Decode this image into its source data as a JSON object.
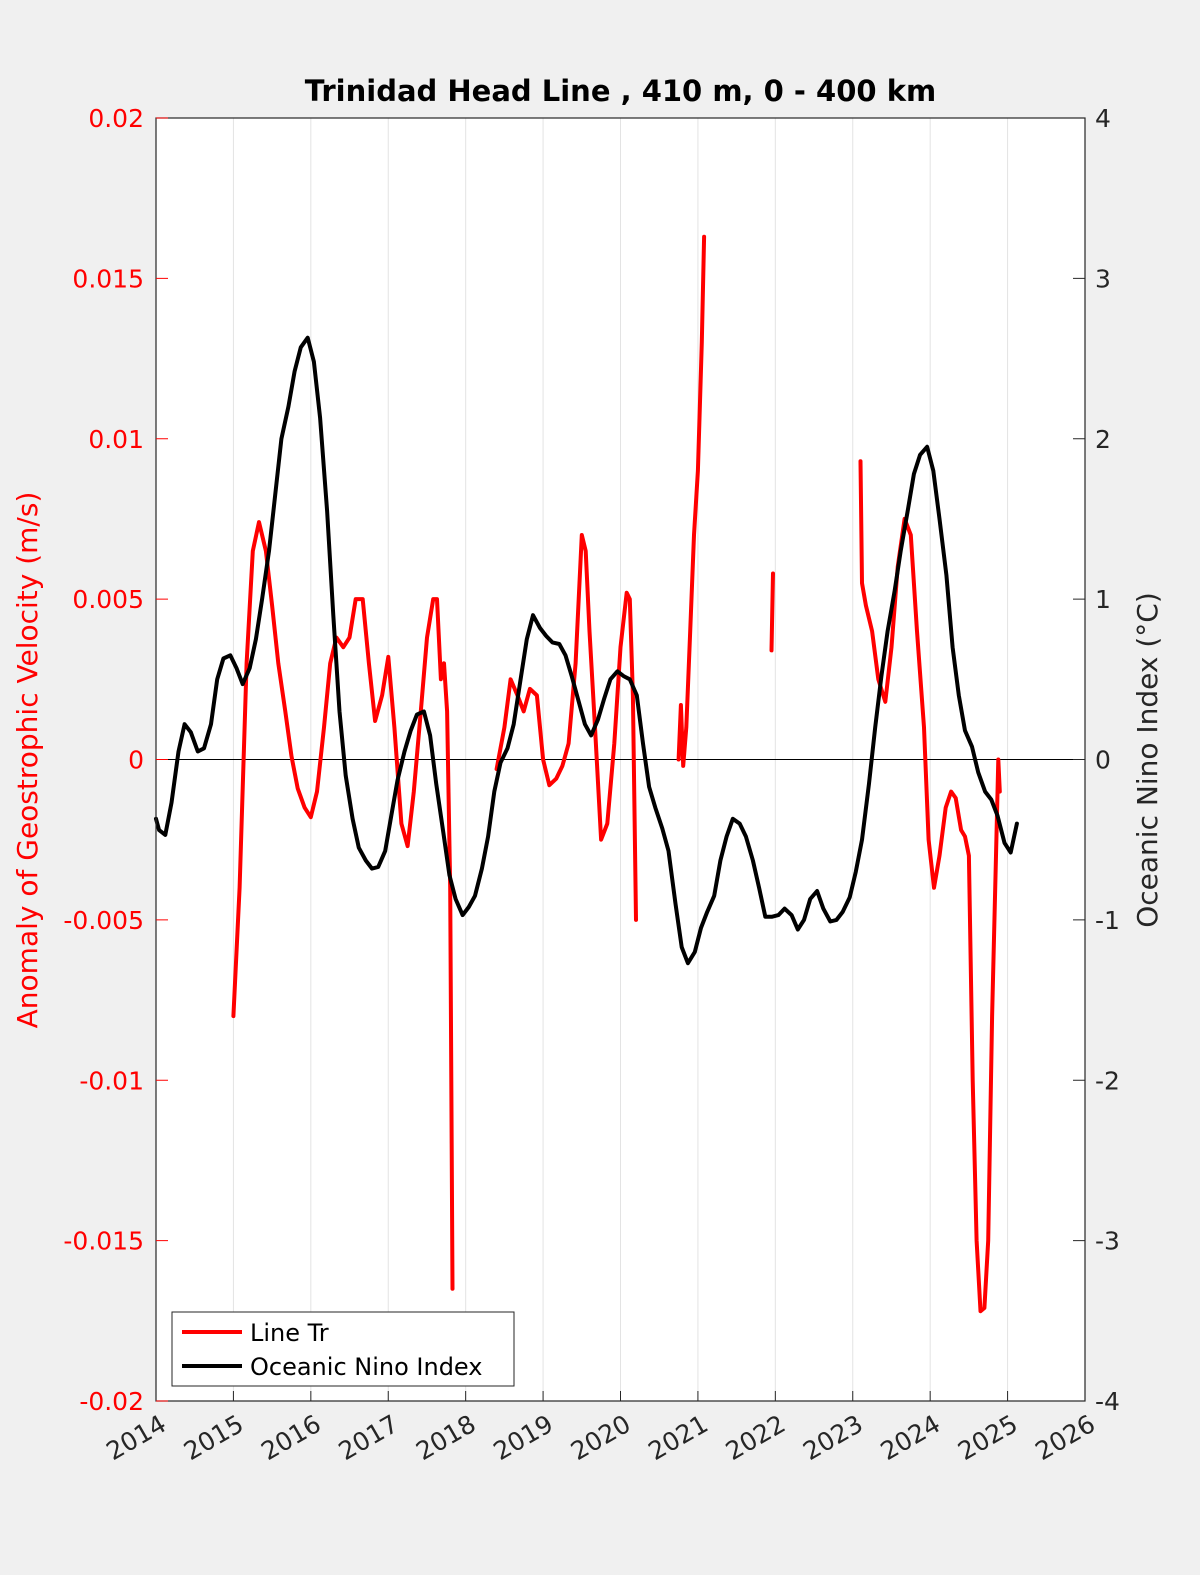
{
  "chart_data": {
    "type": "line",
    "title": "Trinidad Head Line , 410 m, 0 - 400 km",
    "xlim": [
      2014,
      2026
    ],
    "x_ticks": [
      "2014",
      "2015",
      "2016",
      "2017",
      "2018",
      "2019",
      "2020",
      "2021",
      "2022",
      "2023",
      "2024",
      "2025",
      "2026"
    ],
    "y_left": {
      "label": "Anomaly of Geostrophic Velocity (m/s)",
      "lim": [
        -0.02,
        0.02
      ],
      "ticks": [
        "0.02",
        "0.015",
        "0.01",
        "0.005",
        "0",
        "-0.005",
        "-0.01",
        "-0.015",
        "-0.02"
      ],
      "color": "#ff0000"
    },
    "y_right": {
      "label": "Oceanic Nino Index (°C)",
      "lim": [
        -4,
        4
      ],
      "ticks": [
        "4",
        "3",
        "2",
        "1",
        "0",
        "-1",
        "-2",
        "-3",
        "-4"
      ],
      "color": "#262626"
    },
    "grid": "vertical",
    "zero_line": 0,
    "legend": {
      "placement": "bottom-left"
    },
    "series": [
      {
        "name": "Line Tr",
        "axis": "left",
        "color": "#ff0000",
        "segments": [
          [
            [
              2015.0,
              -0.008
            ],
            [
              2015.08,
              -0.004
            ],
            [
              2015.17,
              0.003
            ],
            [
              2015.25,
              0.0065
            ],
            [
              2015.33,
              0.0074
            ],
            [
              2015.42,
              0.0065
            ],
            [
              2015.5,
              0.0048
            ],
            [
              2015.58,
              0.003
            ],
            [
              2015.67,
              0.0015
            ],
            [
              2015.75,
              0.0001
            ],
            [
              2015.83,
              -0.0009
            ],
            [
              2015.92,
              -0.0015
            ],
            [
              2016.0,
              -0.0018
            ],
            [
              2016.08,
              -0.001
            ],
            [
              2016.17,
              0.001
            ],
            [
              2016.25,
              0.003
            ],
            [
              2016.33,
              0.0038
            ],
            [
              2016.42,
              0.0035
            ],
            [
              2016.5,
              0.0038
            ],
            [
              2016.58,
              0.005
            ],
            [
              2016.67,
              0.005
            ],
            [
              2016.75,
              0.003
            ],
            [
              2016.83,
              0.0012
            ],
            [
              2016.92,
              0.002
            ],
            [
              2017.0,
              0.0032
            ],
            [
              2017.08,
              0.001
            ],
            [
              2017.17,
              -0.002
            ],
            [
              2017.25,
              -0.0027
            ],
            [
              2017.33,
              -0.001
            ],
            [
              2017.42,
              0.0015
            ],
            [
              2017.5,
              0.0038
            ],
            [
              2017.58,
              0.005
            ],
            [
              2017.63,
              0.005
            ],
            [
              2017.68,
              0.0025
            ],
            [
              2017.72,
              0.003
            ],
            [
              2017.76,
              0.0015
            ],
            [
              2017.8,
              -0.004
            ],
            [
              2017.83,
              -0.0165
            ]
          ],
          [
            [
              2018.4,
              -0.0003
            ],
            [
              2018.5,
              0.001
            ],
            [
              2018.58,
              0.0025
            ],
            [
              2018.67,
              0.002
            ],
            [
              2018.75,
              0.0015
            ],
            [
              2018.83,
              0.0022
            ],
            [
              2018.92,
              0.002
            ],
            [
              2019.0,
              0.0
            ],
            [
              2019.08,
              -0.0008
            ],
            [
              2019.17,
              -0.0006
            ],
            [
              2019.25,
              -0.0002
            ],
            [
              2019.33,
              0.0005
            ],
            [
              2019.42,
              0.003
            ],
            [
              2019.5,
              0.007
            ],
            [
              2019.55,
              0.0065
            ],
            [
              2019.6,
              0.004
            ],
            [
              2019.67,
              0.001
            ],
            [
              2019.75,
              -0.0025
            ],
            [
              2019.83,
              -0.002
            ],
            [
              2019.92,
              0.0005
            ],
            [
              2020.0,
              0.0035
            ],
            [
              2020.08,
              0.0052
            ],
            [
              2020.12,
              0.005
            ],
            [
              2020.16,
              0.002
            ],
            [
              2020.2,
              -0.005
            ]
          ],
          [
            [
              2020.75,
              0.0
            ],
            [
              2020.78,
              0.0017
            ],
            [
              2020.81,
              -0.0002
            ],
            [
              2020.85,
              0.001
            ],
            [
              2020.9,
              0.004
            ],
            [
              2020.95,
              0.007
            ],
            [
              2021.0,
              0.009
            ],
            [
              2021.05,
              0.013
            ],
            [
              2021.08,
              0.0163
            ]
          ],
          [
            [
              2021.95,
              0.0034
            ],
            [
              2021.97,
              0.0058
            ]
          ],
          [
            [
              2023.1,
              0.0093
            ],
            [
              2023.12,
              0.0055
            ],
            [
              2023.17,
              0.0048
            ],
            [
              2023.25,
              0.004
            ],
            [
              2023.33,
              0.0025
            ],
            [
              2023.42,
              0.0018
            ],
            [
              2023.5,
              0.0035
            ],
            [
              2023.58,
              0.006
            ],
            [
              2023.67,
              0.0075
            ],
            [
              2023.75,
              0.007
            ],
            [
              2023.83,
              0.004
            ],
            [
              2023.92,
              0.001
            ],
            [
              2023.98,
              -0.0025
            ],
            [
              2024.05,
              -0.004
            ],
            [
              2024.12,
              -0.003
            ],
            [
              2024.2,
              -0.0015
            ],
            [
              2024.27,
              -0.001
            ],
            [
              2024.33,
              -0.0012
            ],
            [
              2024.4,
              -0.0022
            ],
            [
              2024.45,
              -0.0024
            ],
            [
              2024.5,
              -0.003
            ],
            [
              2024.55,
              -0.01
            ],
            [
              2024.6,
              -0.015
            ],
            [
              2024.65,
              -0.0172
            ],
            [
              2024.7,
              -0.0171
            ],
            [
              2024.75,
              -0.015
            ],
            [
              2024.8,
              -0.008
            ],
            [
              2024.85,
              -0.003
            ],
            [
              2024.88,
              0.0
            ],
            [
              2024.9,
              -0.001
            ]
          ]
        ]
      },
      {
        "name": "Oceanic Nino Index",
        "axis": "right",
        "color": "#000000",
        "segments": [
          [
            [
              2014.0,
              -0.37
            ],
            [
              2014.04,
              -0.44
            ],
            [
              2014.12,
              -0.47
            ],
            [
              2014.2,
              -0.27
            ],
            [
              2014.29,
              0.05
            ],
            [
              2014.37,
              0.22
            ],
            [
              2014.45,
              0.17
            ],
            [
              2014.54,
              0.05
            ],
            [
              2014.62,
              0.07
            ],
            [
              2014.71,
              0.22
            ],
            [
              2014.79,
              0.5
            ],
            [
              2014.87,
              0.63
            ],
            [
              2014.96,
              0.65
            ],
            [
              2015.04,
              0.57
            ],
            [
              2015.12,
              0.47
            ],
            [
              2015.21,
              0.57
            ],
            [
              2015.29,
              0.75
            ],
            [
              2015.37,
              1.0
            ],
            [
              2015.46,
              1.3
            ],
            [
              2015.54,
              1.65
            ],
            [
              2015.62,
              2.0
            ],
            [
              2015.71,
              2.2
            ],
            [
              2015.79,
              2.42
            ],
            [
              2015.87,
              2.57
            ],
            [
              2015.96,
              2.63
            ],
            [
              2016.04,
              2.48
            ],
            [
              2016.12,
              2.13
            ],
            [
              2016.21,
              1.55
            ],
            [
              2016.29,
              0.9
            ],
            [
              2016.37,
              0.3
            ],
            [
              2016.45,
              -0.1
            ],
            [
              2016.54,
              -0.37
            ],
            [
              2016.62,
              -0.55
            ],
            [
              2016.71,
              -0.63
            ],
            [
              2016.79,
              -0.68
            ],
            [
              2016.87,
              -0.67
            ],
            [
              2016.96,
              -0.57
            ],
            [
              2017.04,
              -0.35
            ],
            [
              2017.12,
              -0.13
            ],
            [
              2017.21,
              0.05
            ],
            [
              2017.29,
              0.18
            ],
            [
              2017.37,
              0.28
            ],
            [
              2017.46,
              0.3
            ],
            [
              2017.54,
              0.15
            ],
            [
              2017.62,
              -0.15
            ],
            [
              2017.71,
              -0.45
            ],
            [
              2017.79,
              -0.72
            ],
            [
              2017.87,
              -0.87
            ],
            [
              2017.96,
              -0.97
            ],
            [
              2018.04,
              -0.92
            ],
            [
              2018.12,
              -0.85
            ],
            [
              2018.21,
              -0.68
            ],
            [
              2018.29,
              -0.48
            ],
            [
              2018.37,
              -0.2
            ],
            [
              2018.45,
              -0.02
            ],
            [
              2018.54,
              0.07
            ],
            [
              2018.62,
              0.22
            ],
            [
              2018.71,
              0.5
            ],
            [
              2018.79,
              0.75
            ],
            [
              2018.87,
              0.9
            ],
            [
              2018.96,
              0.82
            ],
            [
              2019.04,
              0.77
            ],
            [
              2019.12,
              0.73
            ],
            [
              2019.21,
              0.72
            ],
            [
              2019.29,
              0.65
            ],
            [
              2019.37,
              0.52
            ],
            [
              2019.45,
              0.38
            ],
            [
              2019.54,
              0.22
            ],
            [
              2019.62,
              0.15
            ],
            [
              2019.71,
              0.25
            ],
            [
              2019.79,
              0.38
            ],
            [
              2019.87,
              0.5
            ],
            [
              2019.96,
              0.55
            ],
            [
              2020.04,
              0.52
            ],
            [
              2020.12,
              0.5
            ],
            [
              2020.21,
              0.4
            ],
            [
              2020.29,
              0.1
            ],
            [
              2020.37,
              -0.17
            ],
            [
              2020.45,
              -0.3
            ],
            [
              2020.54,
              -0.43
            ],
            [
              2020.62,
              -0.57
            ],
            [
              2020.71,
              -0.9
            ],
            [
              2020.79,
              -1.17
            ],
            [
              2020.87,
              -1.27
            ],
            [
              2020.96,
              -1.2
            ],
            [
              2021.04,
              -1.05
            ],
            [
              2021.12,
              -0.95
            ],
            [
              2021.21,
              -0.85
            ],
            [
              2021.29,
              -0.63
            ],
            [
              2021.37,
              -0.48
            ],
            [
              2021.45,
              -0.37
            ],
            [
              2021.54,
              -0.4
            ],
            [
              2021.62,
              -0.48
            ],
            [
              2021.71,
              -0.63
            ],
            [
              2021.79,
              -0.8
            ],
            [
              2021.87,
              -0.98
            ],
            [
              2021.96,
              -0.98
            ],
            [
              2022.04,
              -0.97
            ],
            [
              2022.12,
              -0.93
            ],
            [
              2022.21,
              -0.97
            ],
            [
              2022.29,
              -1.06
            ],
            [
              2022.37,
              -1.0
            ],
            [
              2022.45,
              -0.87
            ],
            [
              2022.54,
              -0.82
            ],
            [
              2022.62,
              -0.93
            ],
            [
              2022.71,
              -1.01
            ],
            [
              2022.79,
              -1.0
            ],
            [
              2022.87,
              -0.95
            ],
            [
              2022.96,
              -0.86
            ],
            [
              2023.04,
              -0.7
            ],
            [
              2023.12,
              -0.5
            ],
            [
              2023.21,
              -0.15
            ],
            [
              2023.29,
              0.2
            ],
            [
              2023.37,
              0.52
            ],
            [
              2023.45,
              0.8
            ],
            [
              2023.54,
              1.05
            ],
            [
              2023.62,
              1.3
            ],
            [
              2023.71,
              1.55
            ],
            [
              2023.79,
              1.78
            ],
            [
              2023.87,
              1.9
            ],
            [
              2023.96,
              1.95
            ],
            [
              2024.04,
              1.8
            ],
            [
              2024.12,
              1.5
            ],
            [
              2024.21,
              1.15
            ],
            [
              2024.29,
              0.7
            ],
            [
              2024.37,
              0.4
            ],
            [
              2024.45,
              0.18
            ],
            [
              2024.54,
              0.08
            ],
            [
              2024.62,
              -0.08
            ],
            [
              2024.71,
              -0.2
            ],
            [
              2024.79,
              -0.25
            ],
            [
              2024.87,
              -0.35
            ],
            [
              2024.96,
              -0.52
            ],
            [
              2025.04,
              -0.58
            ],
            [
              2025.12,
              -0.4
            ]
          ]
        ]
      }
    ]
  }
}
